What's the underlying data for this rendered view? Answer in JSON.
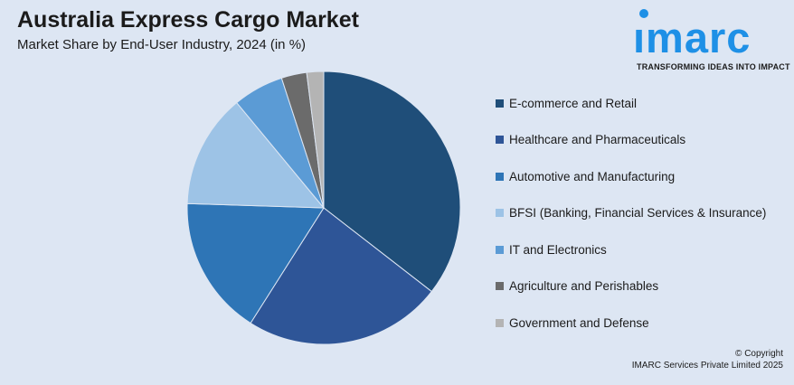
{
  "header": {
    "title": "Australia Express Cargo Market",
    "subtitle": "Market Share by End-User Industry, 2024 (in %)"
  },
  "logo": {
    "word": "ımarc",
    "tagline": "TRANSFORMING IDEAS INTO IMPACT",
    "color": "#1e90e6"
  },
  "chart_data": {
    "type": "pie",
    "title": "Australia Express Cargo Market",
    "subtitle": "Market Share by End-User Industry, 2024 (in %)",
    "legend_position": "right",
    "slices": [
      {
        "label": "E-commerce and Retail",
        "value": 35.5,
        "color": "#1f4e79"
      },
      {
        "label": "Healthcare and Pharmaceuticals",
        "value": 23.5,
        "color": "#2e5597"
      },
      {
        "label": "Automotive and Manufacturing",
        "value": 16.5,
        "color": "#2e75b6"
      },
      {
        "label": "BFSI (Banking, Financial Services & Insurance)",
        "value": 13.5,
        "color": "#9dc3e6"
      },
      {
        "label": "IT and Electronics",
        "value": 6.0,
        "color": "#5b9bd5"
      },
      {
        "label": "Agriculture and Perishables",
        "value": 3.0,
        "color": "#6b6b6b"
      },
      {
        "label": "Government and Defense",
        "value": 2.0,
        "color": "#b4b4b4"
      }
    ]
  },
  "footer": {
    "copyright_line1": "© Copyright",
    "copyright_line2": "IMARC Services Private Limited 2025"
  }
}
